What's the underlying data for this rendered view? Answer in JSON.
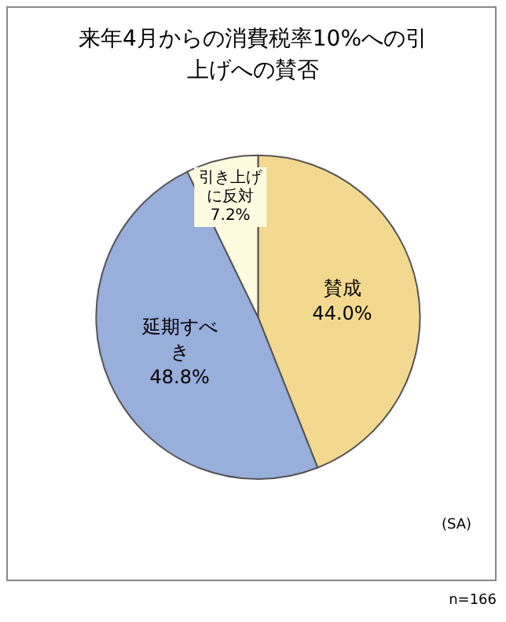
{
  "chart_data": {
    "type": "pie",
    "title": "来年4月からの消費税率10%への引上げへの賛否",
    "categories": [
      "賛成",
      "延期すべき",
      "引き上げに反対"
    ],
    "values": [
      44.0,
      48.8,
      7.2
    ],
    "value_labels": [
      "44.0%",
      "48.8%",
      "7.2%"
    ],
    "colors": [
      "#f3d98f",
      "#98aedb",
      "#fdfbe0"
    ],
    "legend": false,
    "annotations": [
      "(SA)",
      "n=166"
    ]
  }
}
